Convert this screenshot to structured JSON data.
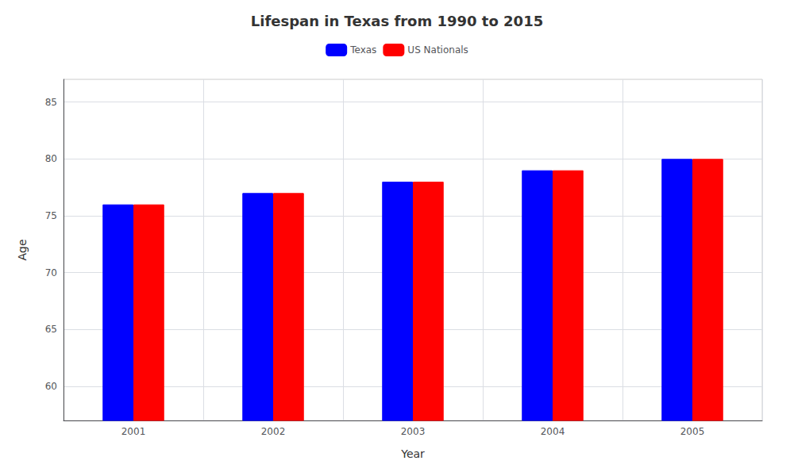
{
  "chart_data": {
    "type": "bar",
    "title": "Lifespan in Texas from 1990 to 2015",
    "x_label": "Year",
    "y_label": "Age",
    "categories": [
      "2001",
      "2002",
      "2003",
      "2004",
      "2005"
    ],
    "series": [
      {
        "name": "Texas",
        "color": "#0000ff",
        "values": [
          76,
          77,
          78,
          79,
          80
        ]
      },
      {
        "name": "US Nationals",
        "color": "#ff0000",
        "values": [
          76,
          77,
          78,
          79,
          80
        ]
      }
    ],
    "ylim": [
      57,
      87
    ],
    "yticks": [
      60,
      65,
      70,
      75,
      80,
      85
    ],
    "grid": true,
    "legend": "top"
  }
}
